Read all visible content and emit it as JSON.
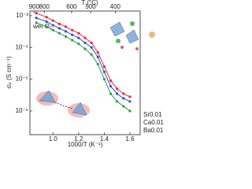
{
  "chart_data": {
    "type": "line",
    "xlabel": "1000/T (K⁻¹)",
    "ylabel": "σₚ (S cm⁻¹)",
    "annotation": "wet O₂",
    "top_axis": {
      "label": "T (°C)",
      "ticks": [
        900,
        800,
        600,
        500,
        400
      ]
    },
    "x": [
      0.87,
      0.95,
      1.0,
      1.05,
      1.1,
      1.15,
      1.2,
      1.25,
      1.3,
      1.35,
      1.4,
      1.45,
      1.5,
      1.55,
      1.6
    ],
    "series": [
      {
        "name": "Sr0.01",
        "color": "#e8283c",
        "values": [
          0.0012,
          0.0009,
          0.0007,
          0.00055,
          0.00045,
          0.00035,
          0.00028,
          0.0002,
          0.00014,
          7e-05,
          2.5e-05,
          9e-06,
          5e-06,
          3.5e-06,
          2.8e-06
        ]
      },
      {
        "name": "Ca0.01",
        "color": "#2c52c8",
        "values": [
          0.00085,
          0.00065,
          0.0005,
          0.0004,
          0.00032,
          0.00025,
          0.0002,
          0.00014,
          0.0001,
          5e-05,
          1.7e-05,
          6e-06,
          3.5e-06,
          2.5e-06,
          2e-06
        ]
      },
      {
        "name": "Ba0.01",
        "color": "#2e9a48",
        "values": [
          0.0006,
          0.00045,
          0.00035,
          0.00028,
          0.00022,
          0.00017,
          0.00013,
          9e-05,
          6e-05,
          3e-05,
          1e-05,
          3.5e-06,
          2e-06,
          1.4e-06,
          1e-06
        ]
      }
    ],
    "xlim": [
      0.82,
      1.68
    ],
    "xticks": [
      {
        "value": 1.0,
        "label": "1.0"
      },
      1.2,
      1.4,
      1.6
    ],
    "ylim": [
      1.8e-07,
      0.0014
    ],
    "log_y": true,
    "yticks": [
      {
        "value": 0.001,
        "label": "10⁻³"
      },
      {
        "value": 0.0001,
        "label": "10⁻⁴"
      },
      {
        "value": 1e-05,
        "label": "10⁻⁵"
      },
      {
        "value": 1e-06,
        "label": "10⁻⁶"
      }
    ]
  }
}
